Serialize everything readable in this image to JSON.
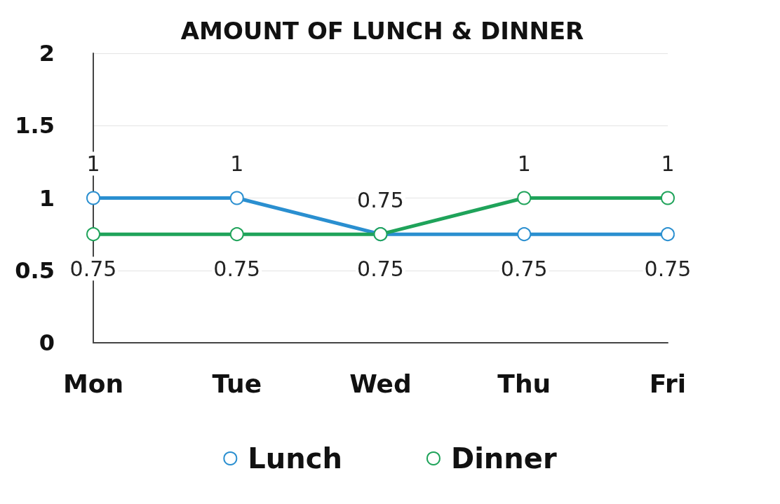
{
  "chart_data": {
    "type": "line",
    "title": "AMOUNT OF LUNCH & DINNER",
    "categories": [
      "Mon",
      "Tue",
      "Wed",
      "Thu",
      "Fri"
    ],
    "series": [
      {
        "name": "Lunch",
        "color": "#2a8fd0",
        "values": [
          1,
          1,
          0.75,
          0.75,
          0.75
        ]
      },
      {
        "name": "Dinner",
        "color": "#1fa35a",
        "values": [
          0.75,
          0.75,
          0.75,
          1,
          1
        ]
      }
    ],
    "ylim": [
      0,
      2
    ],
    "yticks": [
      0,
      0.5,
      1,
      1.5,
      2
    ],
    "grid": "y",
    "legend": "bottom",
    "marker": "circle",
    "line_style": "solid",
    "data_labels": true
  }
}
